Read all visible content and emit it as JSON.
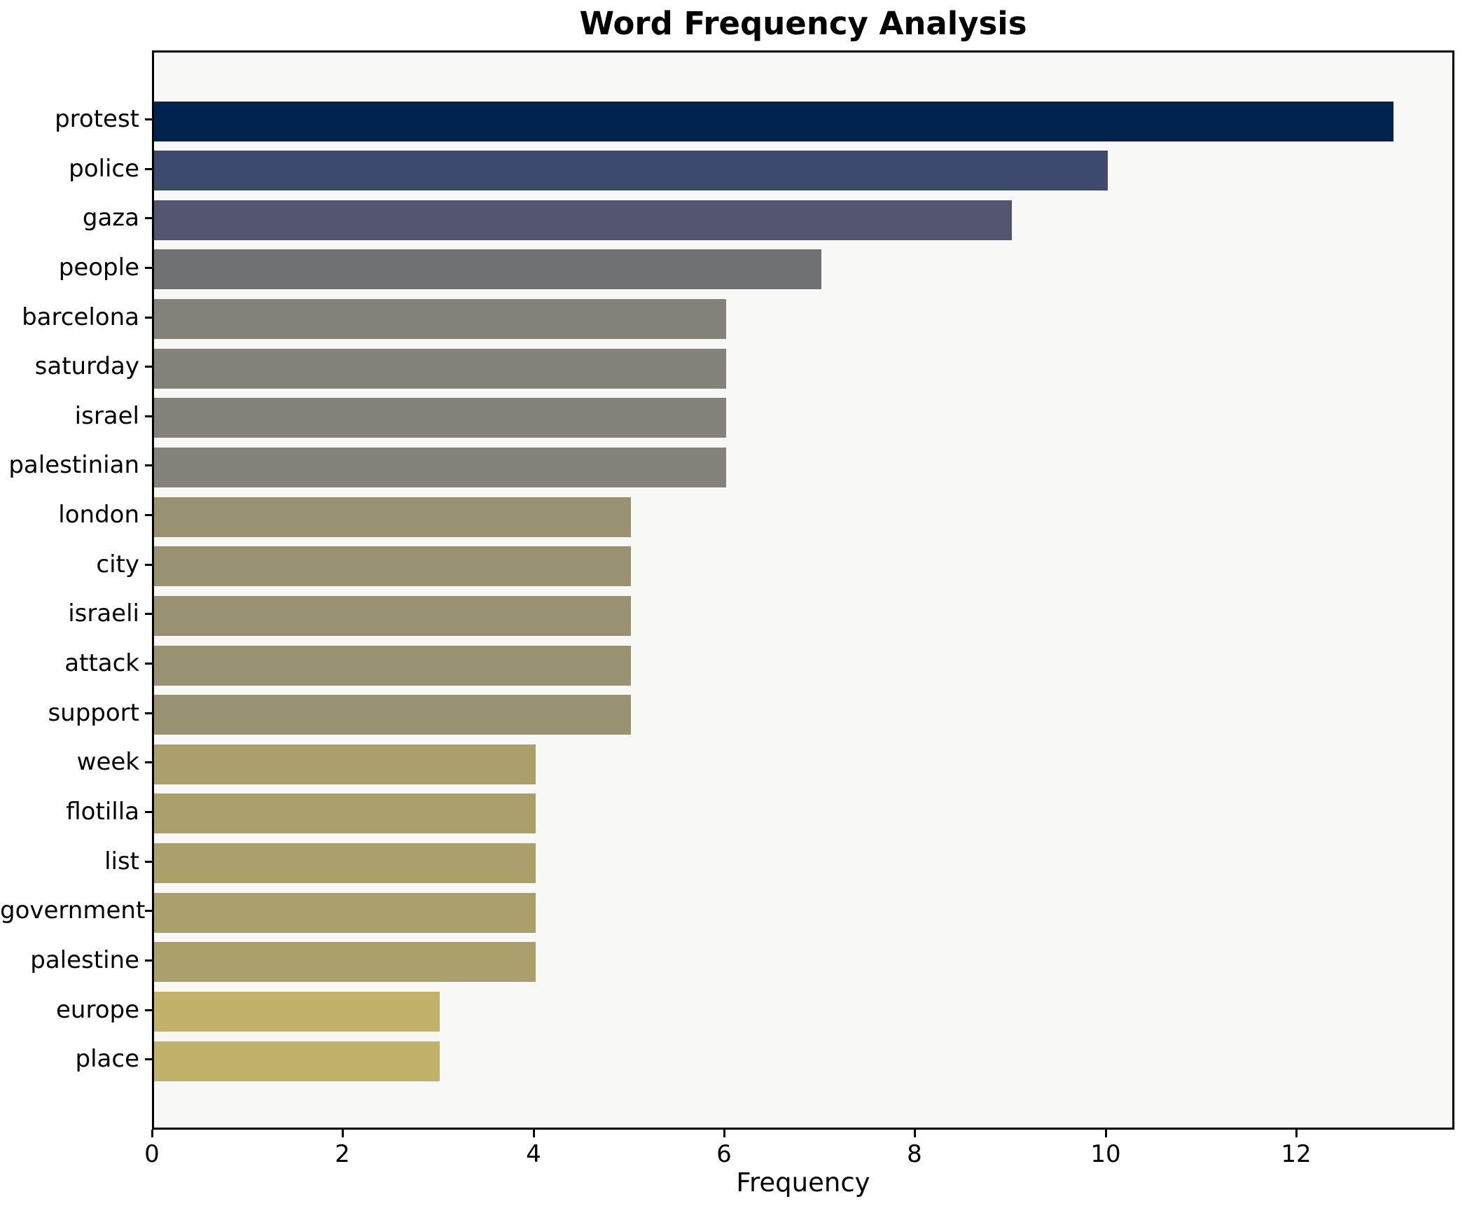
{
  "chart_data": {
    "type": "bar",
    "orientation": "horizontal",
    "title": "Word Frequency Analysis",
    "xlabel": "Frequency",
    "ylabel": "",
    "categories": [
      "protest",
      "police",
      "gaza",
      "people",
      "barcelona",
      "saturday",
      "israel",
      "palestinian",
      "london",
      "city",
      "israeli",
      "attack",
      "support",
      "week",
      "flotilla",
      "list",
      "government",
      "palestine",
      "europe",
      "place"
    ],
    "values": [
      13,
      10,
      9,
      7,
      6,
      6,
      6,
      6,
      5,
      5,
      5,
      5,
      5,
      4,
      4,
      4,
      4,
      4,
      3,
      3
    ],
    "bar_colors": [
      "#03234f",
      "#3e4a6d",
      "#52556d",
      "#707173",
      "#84827a",
      "#84827a",
      "#84827a",
      "#84827a",
      "#989272",
      "#989272",
      "#989272",
      "#989272",
      "#989272",
      "#aaa06c",
      "#aaa06c",
      "#aaa06c",
      "#aaa06c",
      "#aaa06c",
      "#c2b168",
      "#c2b168"
    ],
    "x_ticks": [
      0,
      2,
      4,
      6,
      8,
      10,
      12
    ],
    "xlim": [
      0,
      13.66
    ],
    "grid": false,
    "legend_position": "none",
    "plot_background": "#f8f8f7",
    "figure_background": "#ffffff",
    "spine_color": "#000000",
    "text_color": "#000000"
  }
}
